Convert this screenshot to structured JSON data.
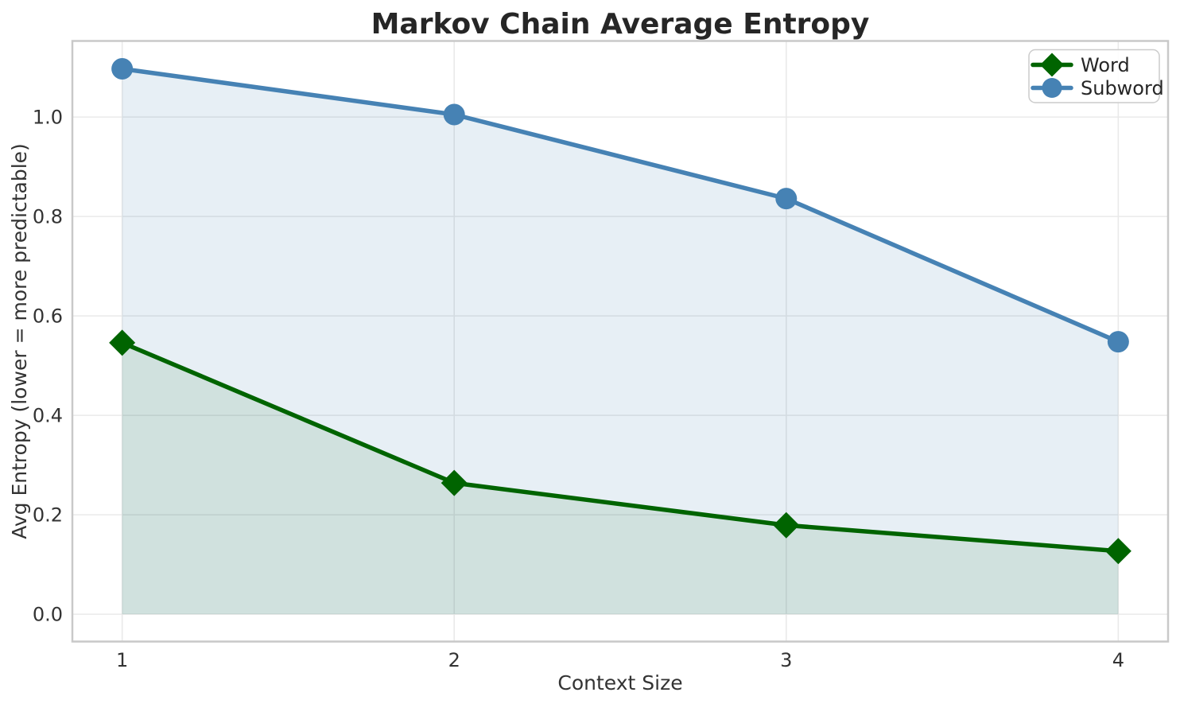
{
  "chart_data": {
    "type": "line",
    "title": "Markov Chain Average Entropy",
    "xlabel": "Context Size",
    "ylabel": "Avg Entropy (lower = more predictable)",
    "x": [
      1,
      2,
      3,
      4
    ],
    "series": [
      {
        "name": "Word",
        "color": "#006400",
        "marker": "diamond",
        "fill_alpha": 0.1,
        "values": [
          0.546,
          0.264,
          0.179,
          0.127
        ]
      },
      {
        "name": "Subword",
        "color": "#4682B4",
        "marker": "circle",
        "fill_alpha": 0.13,
        "values": [
          1.097,
          1.005,
          0.836,
          0.548
        ]
      }
    ],
    "x_tick_labels": [
      "1",
      "2",
      "3",
      "4"
    ],
    "y_ticks": [
      0.0,
      0.2,
      0.4,
      0.6,
      0.8,
      1.0
    ],
    "y_tick_labels": [
      "0.0",
      "0.2",
      "0.4",
      "0.6",
      "0.8",
      "1.0"
    ],
    "xlim": [
      0.85,
      4.15
    ],
    "ylim": [
      -0.055,
      1.153
    ],
    "grid": true,
    "area_fill_to_zero": true,
    "legend_position": "upper right",
    "legend": [
      {
        "label": "Word"
      },
      {
        "label": "Subword"
      }
    ],
    "background_color": "#ffffff",
    "grid_color": "#e9e9e9",
    "spine_color": "#c9c9c9",
    "text_color": "#333333",
    "title_color": "#262626"
  }
}
